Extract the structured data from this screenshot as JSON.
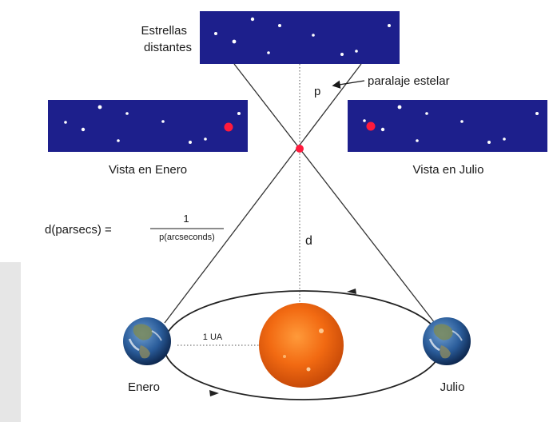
{
  "labels": {
    "distant_stars_line1": "Estrellas",
    "distant_stars_line2": "distantes",
    "parallax_symbol": "p",
    "parallax_label": "paralaje estelar",
    "view_january": "Vista en Enero",
    "view_july": "Vista en Julio",
    "formula_lhs": "d(parsecs) =",
    "formula_numerator": "1",
    "formula_denominator": "p(arcseconds)",
    "distance_symbol": "d",
    "au_label": "1 UA",
    "earth_january": "Enero",
    "earth_july": "Julio"
  },
  "colors": {
    "sky": "#1d1f8c",
    "star": "#ffffff",
    "target_star": "#ff1a3c",
    "sun": "#f26a12",
    "earth_ocean": "#2a5c9a",
    "line": "#333333",
    "sidebar": "#e6e6e6"
  }
}
